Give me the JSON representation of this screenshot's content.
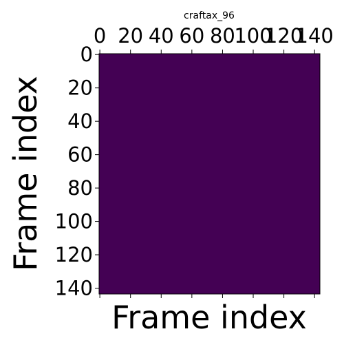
{
  "chart_data": {
    "type": "heatmap",
    "title": "craftax_96",
    "xlabel": "Frame index",
    "ylabel": "Frame index",
    "x_range": [
      0,
      143
    ],
    "y_range": [
      0,
      143
    ],
    "x_ticks": [
      0,
      20,
      40,
      60,
      80,
      100,
      120,
      140
    ],
    "y_ticks": [
      0,
      20,
      40,
      60,
      80,
      100,
      120,
      140
    ],
    "x_tick_position": "top",
    "y_axis_inverted": true,
    "grid": false,
    "colormap": "viridis",
    "uniform_value": 0,
    "cell_color": "#440154"
  }
}
